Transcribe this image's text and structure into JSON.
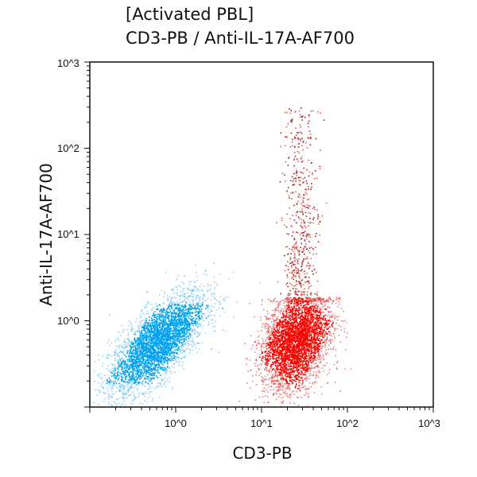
{
  "chart_data": {
    "type": "scatter",
    "title": "[Activated PBL]",
    "subtitle": "CD3-PB / Anti-IL-17A-AF700",
    "xlabel": "CD3-PB",
    "ylabel": "Anti-IL-17A-AF700",
    "x_scale": "log",
    "y_scale": "log",
    "xlim": [
      0.1,
      1000
    ],
    "ylim": [
      0.1,
      1000
    ],
    "x_ticks": [
      "10^0",
      "10^1",
      "10^2",
      "10^3"
    ],
    "y_ticks": [
      "10^0",
      "10^1",
      "10^2",
      "10^3"
    ],
    "grid": false,
    "populations": [
      {
        "color": "#00a2f0",
        "center_x": 0.6,
        "center_y": 0.55,
        "log_spread_x": 0.28,
        "log_spread_y": 0.3
      },
      {
        "color": "#ff0000",
        "center_x": 25,
        "center_y": 0.6,
        "log_spread_x": 0.2,
        "log_spread_y": 0.3
      },
      {
        "color": "#d01010",
        "center_x": 28,
        "center_y": 30,
        "x_range": [
          15,
          60
        ],
        "y_range": [
          2,
          300
        ]
      }
    ]
  }
}
